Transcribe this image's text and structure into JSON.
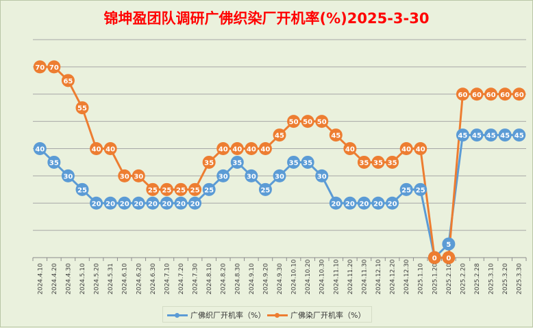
{
  "chart_data": {
    "type": "line",
    "title": "锦坤盈团队调研广佛织染厂开机率(%)2025-3-30",
    "categories": [
      "2024.4.10",
      "2024.4.20",
      "2024.4.30",
      "2024.5.10",
      "2024.5.20",
      "2024.5.31",
      "2024.6.10",
      "2024.6.20",
      "2024.6.30",
      "2024.7.10",
      "2024.7.20",
      "2024.7.30",
      "2024.8.10",
      "2024.8.20",
      "2024.8.30",
      "2024.9.10",
      "2024.9.20",
      "2024.9.30",
      "2024.10.10",
      "2024.10.20",
      "2024.10.30",
      "2024.11.10",
      "2024.11.20",
      "2024.11.30",
      "2024.12.10",
      "2024.12.20",
      "2024.12.30",
      "2025.1.10",
      "2025.1.20",
      "2025.2.10",
      "2025.2.20",
      "2025.2.28",
      "2025.3.10",
      "2025.3.20",
      "2025.3.30"
    ],
    "series": [
      {
        "name": "广佛织厂开机率（%）",
        "color": "#5b9bd5",
        "values": [
          40,
          35,
          30,
          25,
          20,
          20,
          20,
          20,
          20,
          20,
          20,
          20,
          25,
          30,
          35,
          30,
          25,
          30,
          35,
          35,
          30,
          20,
          20,
          20,
          20,
          20,
          25,
          25,
          0,
          5,
          45,
          45,
          45,
          45,
          45
        ]
      },
      {
        "name": "广佛染厂开机率（%）",
        "color": "#ed7d31",
        "values": [
          70,
          70,
          65,
          55,
          40,
          40,
          30,
          30,
          25,
          25,
          25,
          25,
          35,
          40,
          40,
          40,
          40,
          45,
          50,
          50,
          50,
          45,
          40,
          35,
          35,
          35,
          40,
          40,
          0,
          0,
          60,
          60,
          60,
          60,
          60
        ]
      }
    ],
    "ylim": [
      0,
      80
    ],
    "grid": true,
    "legend": "bottom"
  }
}
